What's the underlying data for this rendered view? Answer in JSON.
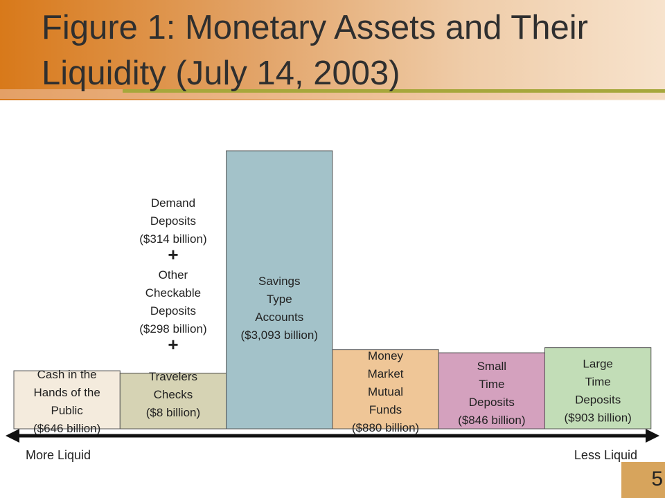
{
  "title": "Figure 1:  Monetary Assets and Their Liquidity (July 14, 2003)",
  "axis": {
    "left_label": "More Liquid",
    "right_label": "Less Liquid"
  },
  "slide_number": "5",
  "chart_data": {
    "type": "bar",
    "categories": [
      "Cash in the Hands of the Public",
      "Demand Deposits + Other Checkable Deposits + Travelers Checks",
      "Savings Type Accounts",
      "Money Market Mutual Funds",
      "Small Time Deposits",
      "Large Time Deposits"
    ],
    "values": [
      646,
      620,
      3093,
      880,
      846,
      903
    ],
    "unit": "billion dollars",
    "bars": [
      {
        "label_lines": [
          "Cash in the",
          "Hands of the",
          "Public",
          "($646 billion)"
        ],
        "value": 646,
        "color": "#f4ebdd"
      },
      {
        "label_lines": [
          "Travelers",
          "Checks",
          "($8 billion)"
        ],
        "value": 620,
        "color": "#d6d3b4"
      },
      {
        "label_lines": [
          "Savings",
          "Type",
          "Accounts",
          "($3,093 billion)"
        ],
        "value": 3093,
        "color": "#a3c2c9"
      },
      {
        "label_lines": [
          "Money",
          "Market",
          "Mutual",
          "Funds",
          "($880 billion)"
        ],
        "value": 880,
        "color": "#efc697"
      },
      {
        "label_lines": [
          "Small",
          "Time",
          "Deposits",
          "($846 billion)"
        ],
        "value": 846,
        "color": "#d4a1be"
      },
      {
        "label_lines": [
          "Large",
          "Time",
          "Deposits",
          "($903 billion)"
        ],
        "value": 903,
        "color": "#c2ddb7"
      }
    ],
    "stack_note_lines": [
      "Demand",
      "Deposits",
      "($314 billion)",
      "+",
      "Other",
      "Checkable",
      "Deposits",
      "($298 billion)",
      "+"
    ],
    "xlabel": "",
    "ylabel": "",
    "legend": "none",
    "grid": false
  }
}
